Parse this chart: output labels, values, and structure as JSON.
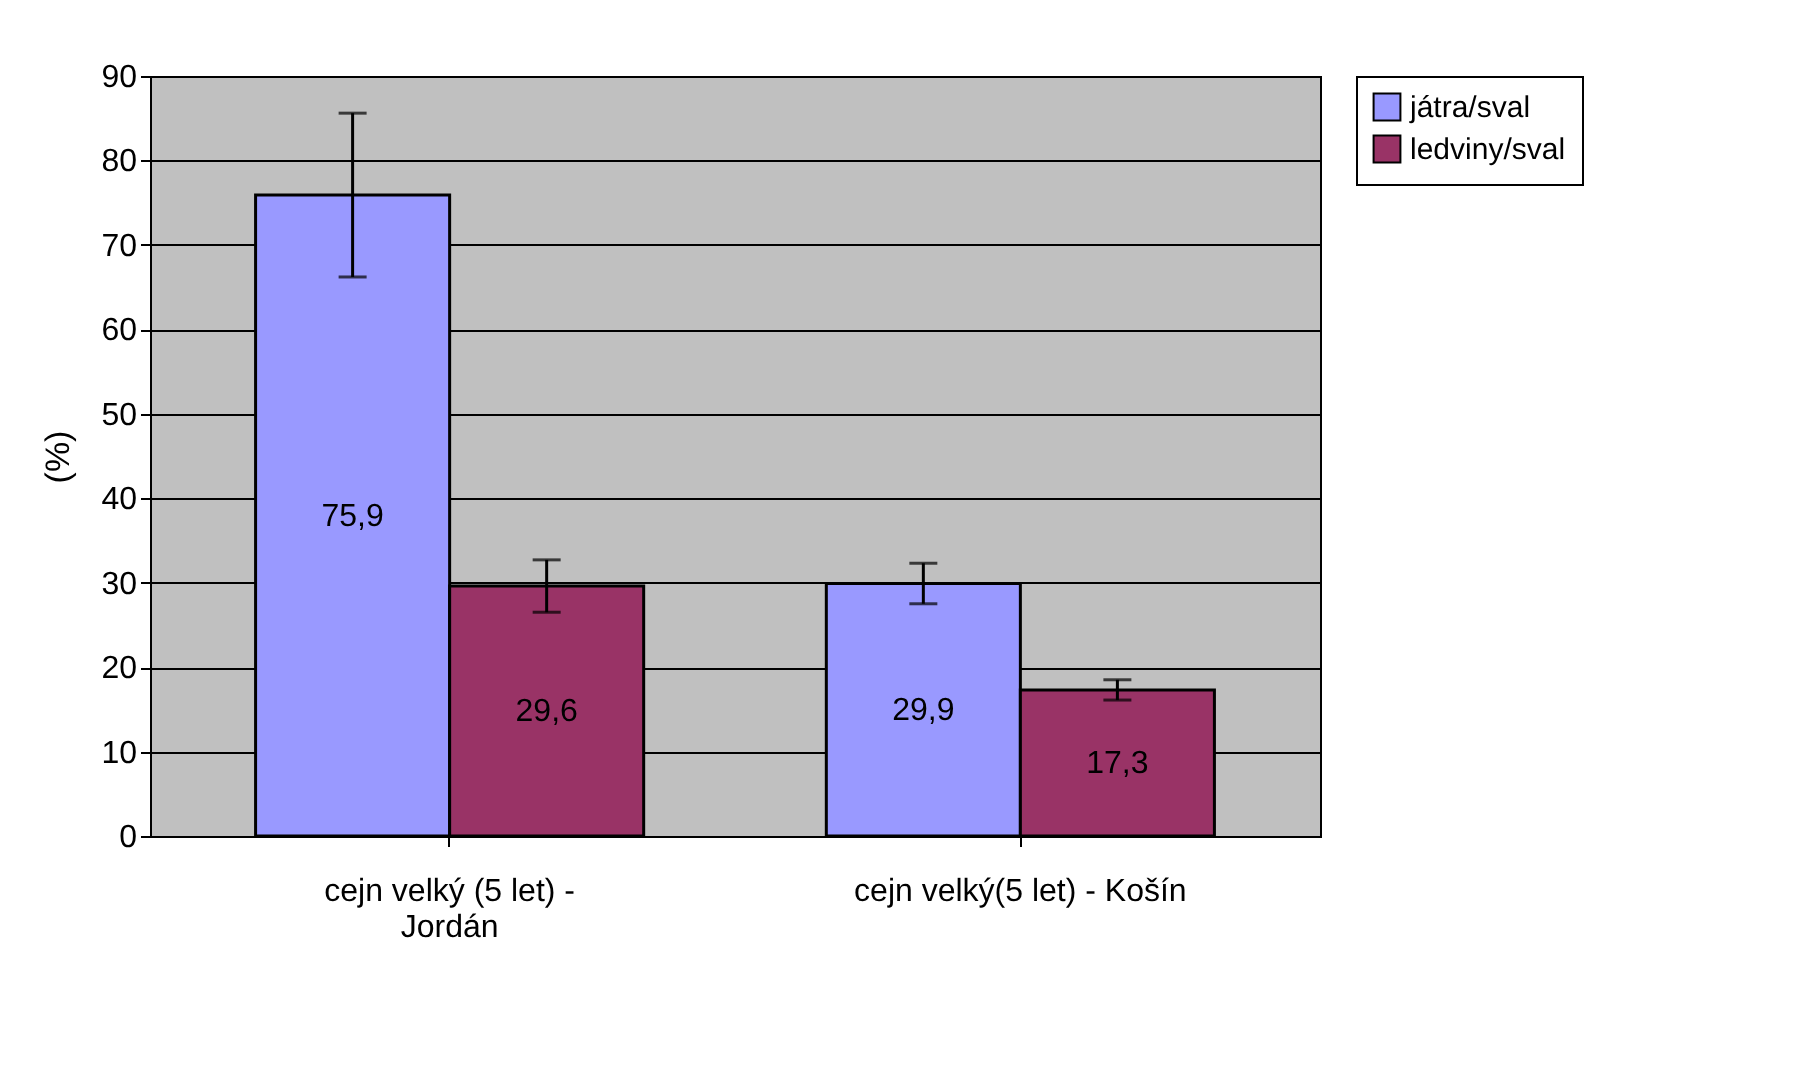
{
  "chart_data": {
    "type": "bar",
    "ylabel": "(%)",
    "categories": [
      "cejn velký (5 let) -\nJordán",
      "cejn velký(5 let) - Košín"
    ],
    "series": [
      {
        "name": "játra/sval",
        "color": "#9999ff",
        "values": [
          75.9,
          29.9
        ],
        "errors": [
          9.7,
          2.4
        ],
        "value_labels": [
          "75,9",
          "29,9"
        ]
      },
      {
        "name": "ledviny/sval",
        "color": "#993366",
        "values": [
          29.6,
          17.3
        ],
        "errors": [
          3.1,
          1.2
        ],
        "value_labels": [
          "29,6",
          "17,3"
        ]
      }
    ],
    "ylim": [
      0,
      90
    ],
    "yticks": [
      0,
      10,
      20,
      30,
      40,
      50,
      60,
      70,
      80,
      90
    ],
    "grid": "y",
    "legend": "right"
  }
}
